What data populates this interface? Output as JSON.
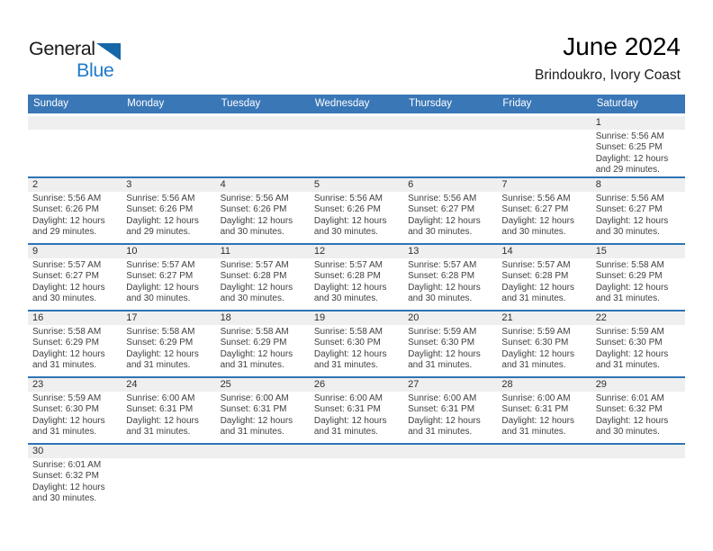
{
  "logo": {
    "general": "General",
    "blue": "Blue"
  },
  "header": {
    "title": "June 2024",
    "location": "Brindoukro, Ivory Coast"
  },
  "weekdays": [
    "Sunday",
    "Monday",
    "Tuesday",
    "Wednesday",
    "Thursday",
    "Friday",
    "Saturday"
  ],
  "colors": {
    "header_bar": "#3a77b7",
    "row_border": "#2e74b5",
    "day_number_bg": "#efefef",
    "day_number_text": "#2f2f2f",
    "detail_text": "#3f3f3f",
    "logo_blue": "#1e7bca",
    "logo_triangle": "#1667a8",
    "logo_dark": "#1a1a1a"
  },
  "weeks": [
    [
      {},
      {},
      {},
      {},
      {},
      {},
      {
        "day": "1",
        "sunrise": "Sunrise: 5:56 AM",
        "sunset": "Sunset: 6:25 PM",
        "daylight": "Daylight: 12 hours and 29 minutes."
      }
    ],
    [
      {
        "day": "2",
        "sunrise": "Sunrise: 5:56 AM",
        "sunset": "Sunset: 6:26 PM",
        "daylight": "Daylight: 12 hours and 29 minutes."
      },
      {
        "day": "3",
        "sunrise": "Sunrise: 5:56 AM",
        "sunset": "Sunset: 6:26 PM",
        "daylight": "Daylight: 12 hours and 29 minutes."
      },
      {
        "day": "4",
        "sunrise": "Sunrise: 5:56 AM",
        "sunset": "Sunset: 6:26 PM",
        "daylight": "Daylight: 12 hours and 30 minutes."
      },
      {
        "day": "5",
        "sunrise": "Sunrise: 5:56 AM",
        "sunset": "Sunset: 6:26 PM",
        "daylight": "Daylight: 12 hours and 30 minutes."
      },
      {
        "day": "6",
        "sunrise": "Sunrise: 5:56 AM",
        "sunset": "Sunset: 6:27 PM",
        "daylight": "Daylight: 12 hours and 30 minutes."
      },
      {
        "day": "7",
        "sunrise": "Sunrise: 5:56 AM",
        "sunset": "Sunset: 6:27 PM",
        "daylight": "Daylight: 12 hours and 30 minutes."
      },
      {
        "day": "8",
        "sunrise": "Sunrise: 5:56 AM",
        "sunset": "Sunset: 6:27 PM",
        "daylight": "Daylight: 12 hours and 30 minutes."
      }
    ],
    [
      {
        "day": "9",
        "sunrise": "Sunrise: 5:57 AM",
        "sunset": "Sunset: 6:27 PM",
        "daylight": "Daylight: 12 hours and 30 minutes."
      },
      {
        "day": "10",
        "sunrise": "Sunrise: 5:57 AM",
        "sunset": "Sunset: 6:27 PM",
        "daylight": "Daylight: 12 hours and 30 minutes."
      },
      {
        "day": "11",
        "sunrise": "Sunrise: 5:57 AM",
        "sunset": "Sunset: 6:28 PM",
        "daylight": "Daylight: 12 hours and 30 minutes."
      },
      {
        "day": "12",
        "sunrise": "Sunrise: 5:57 AM",
        "sunset": "Sunset: 6:28 PM",
        "daylight": "Daylight: 12 hours and 30 minutes."
      },
      {
        "day": "13",
        "sunrise": "Sunrise: 5:57 AM",
        "sunset": "Sunset: 6:28 PM",
        "daylight": "Daylight: 12 hours and 30 minutes."
      },
      {
        "day": "14",
        "sunrise": "Sunrise: 5:57 AM",
        "sunset": "Sunset: 6:28 PM",
        "daylight": "Daylight: 12 hours and 31 minutes."
      },
      {
        "day": "15",
        "sunrise": "Sunrise: 5:58 AM",
        "sunset": "Sunset: 6:29 PM",
        "daylight": "Daylight: 12 hours and 31 minutes."
      }
    ],
    [
      {
        "day": "16",
        "sunrise": "Sunrise: 5:58 AM",
        "sunset": "Sunset: 6:29 PM",
        "daylight": "Daylight: 12 hours and 31 minutes."
      },
      {
        "day": "17",
        "sunrise": "Sunrise: 5:58 AM",
        "sunset": "Sunset: 6:29 PM",
        "daylight": "Daylight: 12 hours and 31 minutes."
      },
      {
        "day": "18",
        "sunrise": "Sunrise: 5:58 AM",
        "sunset": "Sunset: 6:29 PM",
        "daylight": "Daylight: 12 hours and 31 minutes."
      },
      {
        "day": "19",
        "sunrise": "Sunrise: 5:58 AM",
        "sunset": "Sunset: 6:30 PM",
        "daylight": "Daylight: 12 hours and 31 minutes."
      },
      {
        "day": "20",
        "sunrise": "Sunrise: 5:59 AM",
        "sunset": "Sunset: 6:30 PM",
        "daylight": "Daylight: 12 hours and 31 minutes."
      },
      {
        "day": "21",
        "sunrise": "Sunrise: 5:59 AM",
        "sunset": "Sunset: 6:30 PM",
        "daylight": "Daylight: 12 hours and 31 minutes."
      },
      {
        "day": "22",
        "sunrise": "Sunrise: 5:59 AM",
        "sunset": "Sunset: 6:30 PM",
        "daylight": "Daylight: 12 hours and 31 minutes."
      }
    ],
    [
      {
        "day": "23",
        "sunrise": "Sunrise: 5:59 AM",
        "sunset": "Sunset: 6:30 PM",
        "daylight": "Daylight: 12 hours and 31 minutes."
      },
      {
        "day": "24",
        "sunrise": "Sunrise: 6:00 AM",
        "sunset": "Sunset: 6:31 PM",
        "daylight": "Daylight: 12 hours and 31 minutes."
      },
      {
        "day": "25",
        "sunrise": "Sunrise: 6:00 AM",
        "sunset": "Sunset: 6:31 PM",
        "daylight": "Daylight: 12 hours and 31 minutes."
      },
      {
        "day": "26",
        "sunrise": "Sunrise: 6:00 AM",
        "sunset": "Sunset: 6:31 PM",
        "daylight": "Daylight: 12 hours and 31 minutes."
      },
      {
        "day": "27",
        "sunrise": "Sunrise: 6:00 AM",
        "sunset": "Sunset: 6:31 PM",
        "daylight": "Daylight: 12 hours and 31 minutes."
      },
      {
        "day": "28",
        "sunrise": "Sunrise: 6:00 AM",
        "sunset": "Sunset: 6:31 PM",
        "daylight": "Daylight: 12 hours and 31 minutes."
      },
      {
        "day": "29",
        "sunrise": "Sunrise: 6:01 AM",
        "sunset": "Sunset: 6:32 PM",
        "daylight": "Daylight: 12 hours and 30 minutes."
      }
    ],
    [
      {
        "day": "30",
        "sunrise": "Sunrise: 6:01 AM",
        "sunset": "Sunset: 6:32 PM",
        "daylight": "Daylight: 12 hours and 30 minutes."
      },
      {},
      {},
      {},
      {},
      {},
      {}
    ]
  ]
}
